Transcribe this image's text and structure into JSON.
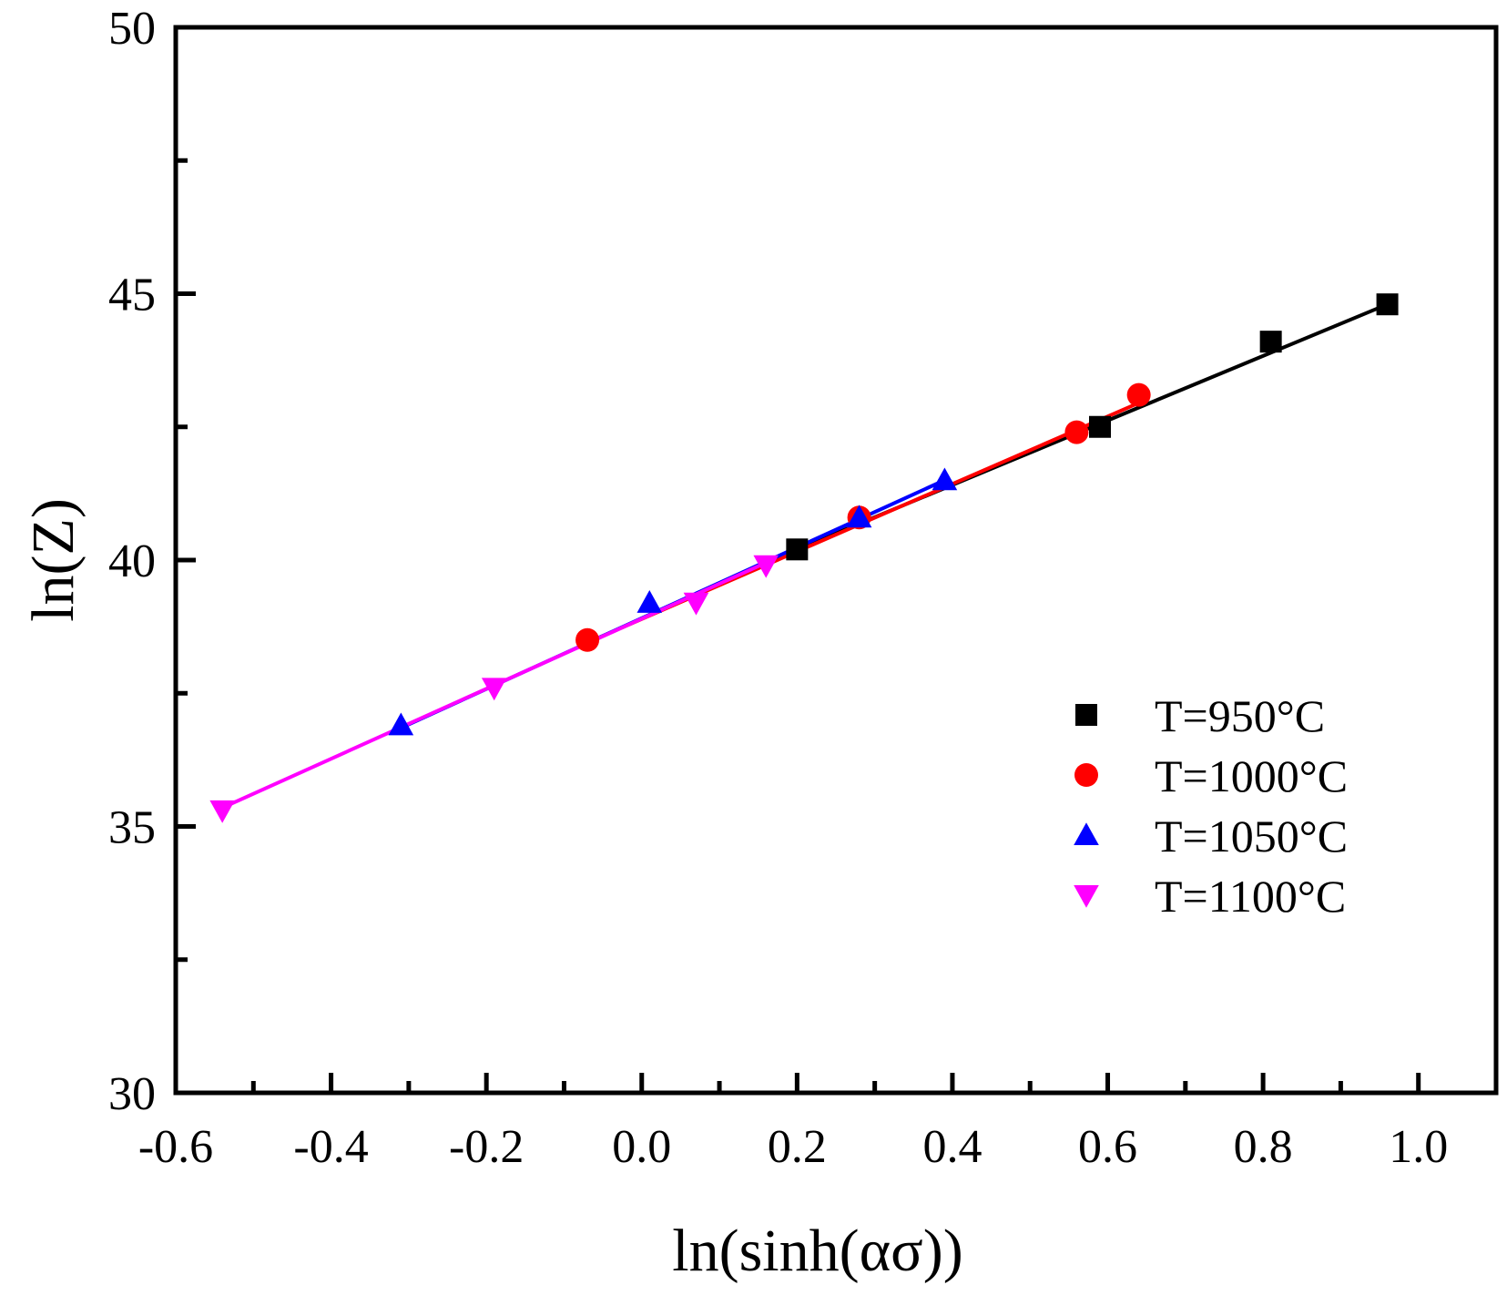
{
  "chart_data": {
    "type": "scatter",
    "title": "",
    "xlabel": "ln(sinh(ασ))",
    "ylabel": "ln(Z)",
    "xlim": [
      -0.6,
      1.1
    ],
    "ylim": [
      30,
      50
    ],
    "x_ticks": [
      -0.6,
      -0.4,
      -0.2,
      0.0,
      0.2,
      0.4,
      0.6,
      0.8,
      1.0
    ],
    "x_tick_labels": [
      "-0.6",
      "-0.4",
      "-0.2",
      "0.0",
      "0.2",
      "0.4",
      "0.6",
      "0.8",
      "1.0"
    ],
    "y_ticks": [
      30,
      35,
      40,
      45,
      50
    ],
    "y_tick_labels": [
      "30",
      "35",
      "40",
      "45",
      "50"
    ],
    "grid": false,
    "legend_position": "bottom-right",
    "series": [
      {
        "name": "T=950°C",
        "marker": "square",
        "color": "#000000",
        "points": [
          [
            0.2,
            40.2
          ],
          [
            0.59,
            42.5
          ],
          [
            0.81,
            44.1
          ],
          [
            0.96,
            44.8
          ]
        ],
        "fit": [
          [
            0.2,
            40.2
          ],
          [
            0.96,
            44.8
          ]
        ]
      },
      {
        "name": "T=1000°C",
        "marker": "circle",
        "color": "#ff0000",
        "points": [
          [
            -0.07,
            38.5
          ],
          [
            0.28,
            40.8
          ],
          [
            0.56,
            42.4
          ],
          [
            0.64,
            43.1
          ]
        ],
        "fit": [
          [
            -0.07,
            38.45
          ],
          [
            0.64,
            42.95
          ]
        ]
      },
      {
        "name": "T=1050°C",
        "marker": "triangle-up",
        "color": "#0000ff",
        "points": [
          [
            -0.31,
            36.9
          ],
          [
            0.01,
            39.2
          ],
          [
            0.28,
            40.8
          ],
          [
            0.39,
            41.5
          ]
        ],
        "fit": [
          [
            -0.31,
            36.85
          ],
          [
            0.39,
            41.5
          ]
        ]
      },
      {
        "name": "T=1100°C",
        "marker": "triangle-down",
        "color": "#ff00ff",
        "points": [
          [
            -0.54,
            35.3
          ],
          [
            -0.19,
            37.6
          ],
          [
            0.07,
            39.2
          ],
          [
            0.16,
            39.9
          ]
        ],
        "fit": [
          [
            -0.54,
            35.35
          ],
          [
            0.16,
            39.95
          ]
        ]
      }
    ]
  }
}
